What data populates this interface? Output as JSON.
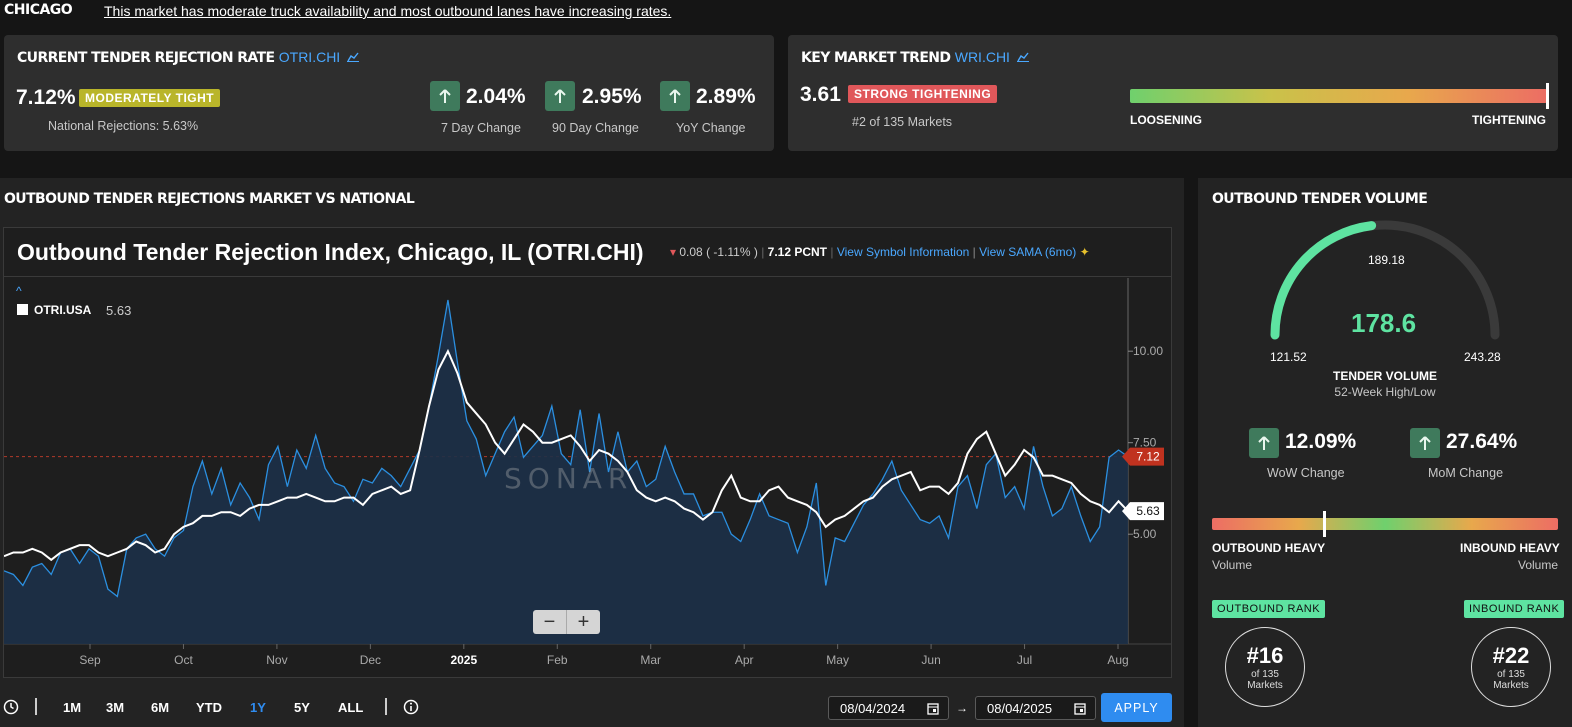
{
  "header": {
    "city": "CHICAGO",
    "summary": "This market has moderate truck availability and most outbound lanes have increasing rates."
  },
  "tender_rejection": {
    "title": "CURRENT TENDER REJECTION RATE",
    "symbol": "OTRI.CHI",
    "value": "7.12%",
    "badge": "MODERATELY TIGHT",
    "national": "National Rejections: 5.63%",
    "changes": [
      {
        "value": "2.04%",
        "label": "7 Day Change"
      },
      {
        "value": "2.95%",
        "label": "90 Day Change"
      },
      {
        "value": "2.89%",
        "label": "YoY Change"
      }
    ]
  },
  "market_trend": {
    "title": "KEY MARKET TREND",
    "symbol": "WRI.CHI",
    "value": "3.61",
    "badge": "STRONG TIGHTENING",
    "rank": "#2 of 135 Markets",
    "left_label": "LOOSENING",
    "right_label": "TIGHTENING",
    "position": 1.0
  },
  "chart_section": {
    "title": "OUTBOUND TENDER REJECTIONS MARKET VS NATIONAL",
    "chart_title": "Outbound Tender Rejection Index, Chicago, IL (OTRI.CHI)",
    "change": "0.08 ( -1.11% )",
    "current": "7.12 PCNT",
    "link1": "View Symbol Information",
    "link2": "View SAMA (6mo)",
    "caret": "^",
    "legend_name": "OTRI.USA",
    "legend_value": "5.63",
    "watermark": "SONAR",
    "zoom_out": "−",
    "zoom_in": "+"
  },
  "chart_data": {
    "type": "line",
    "x_labels": [
      "Sep",
      "Oct",
      "Nov",
      "Dec",
      "2025",
      "Feb",
      "Mar",
      "Apr",
      "May",
      "Jun",
      "Jul",
      "Aug"
    ],
    "y_ticks": [
      "10.00",
      "7.50",
      "5.00"
    ],
    "ylim": [
      2.0,
      12.0
    ],
    "series": [
      {
        "name": "OTRI.CHI",
        "color": "#2b8fe0",
        "last": "7.12",
        "values": [
          4.0,
          3.9,
          3.6,
          4.1,
          4.2,
          3.9,
          4.5,
          4.6,
          4.2,
          4.6,
          4.4,
          3.5,
          3.3,
          4.6,
          4.9,
          5.0,
          4.6,
          4.4,
          4.9,
          5.1,
          6.3,
          7.0,
          6.1,
          6.8,
          5.8,
          6.4,
          6.0,
          5.4,
          6.9,
          7.4,
          6.3,
          7.3,
          6.8,
          7.7,
          6.8,
          6.4,
          6.3,
          5.9,
          6.5,
          6.4,
          6.8,
          6.6,
          6.3,
          6.8,
          7.3,
          8.5,
          9.9,
          11.4,
          9.7,
          8.1,
          7.6,
          6.6,
          7.2,
          7.8,
          8.2,
          7.1,
          7.4,
          7.7,
          8.5,
          7.2,
          6.9,
          8.4,
          6.7,
          8.3,
          6.7,
          7.8,
          6.7,
          7.0,
          6.3,
          6.5,
          7.4,
          6.7,
          6.1,
          6.1,
          5.5,
          5.6,
          5.6,
          5.0,
          4.8,
          5.4,
          6.1,
          5.5,
          5.4,
          5.3,
          4.5,
          5.2,
          6.4,
          3.6,
          4.9,
          4.8,
          5.3,
          5.8,
          6.1,
          6.5,
          7.0,
          6.2,
          5.8,
          5.4,
          5.3,
          5.5,
          4.9,
          6.3,
          6.6,
          5.7,
          6.9,
          7.2,
          6.0,
          6.3,
          5.7,
          7.4,
          6.3,
          5.5,
          5.7,
          6.3,
          5.5,
          4.8,
          5.2,
          7.1,
          7.3,
          7.12
        ]
      },
      {
        "name": "OTRI.USA",
        "color": "#ffffff",
        "last": "5.63",
        "values": [
          4.4,
          4.5,
          4.5,
          4.6,
          4.5,
          4.3,
          4.5,
          4.6,
          4.7,
          4.7,
          4.5,
          4.4,
          4.5,
          4.6,
          4.8,
          4.7,
          4.5,
          4.6,
          5.0,
          5.2,
          5.3,
          5.5,
          5.5,
          5.6,
          5.6,
          5.5,
          5.7,
          5.8,
          5.8,
          5.9,
          6.0,
          6.0,
          6.1,
          6.0,
          5.9,
          5.9,
          6.0,
          6.0,
          5.8,
          6.1,
          6.2,
          6.3,
          6.1,
          6.2,
          7.3,
          8.5,
          9.5,
          10.0,
          9.4,
          8.6,
          8.3,
          8.0,
          7.5,
          7.2,
          7.6,
          8.0,
          7.8,
          7.5,
          7.5,
          7.6,
          7.7,
          7.4,
          7.0,
          7.3,
          7.2,
          7.0,
          6.7,
          6.2,
          6.0,
          5.9,
          6.0,
          5.9,
          5.7,
          5.6,
          5.4,
          5.6,
          6.2,
          6.6,
          6.0,
          5.9,
          5.9,
          6.2,
          6.3,
          6.0,
          5.9,
          5.8,
          5.6,
          5.2,
          5.4,
          5.5,
          5.7,
          5.9,
          6.0,
          6.3,
          6.5,
          6.6,
          6.7,
          6.2,
          6.3,
          6.3,
          6.1,
          6.4,
          7.2,
          7.6,
          7.8,
          7.2,
          6.6,
          6.9,
          7.3,
          7.1,
          6.6,
          6.6,
          6.5,
          6.4,
          6.1,
          5.9,
          5.8,
          5.6,
          5.9,
          5.63
        ]
      }
    ]
  },
  "range": {
    "buttons": [
      "1M",
      "3M",
      "6M",
      "YTD",
      "1Y",
      "5Y",
      "ALL"
    ],
    "active": "1Y",
    "start": "08/04/2024",
    "end": "08/04/2025",
    "apply": "APPLY"
  },
  "volume": {
    "title": "OUTBOUND TENDER VOLUME",
    "value": "178.6",
    "high_mark": "189.18",
    "low": "121.52",
    "high": "243.28",
    "label": "TENDER VOLUME",
    "sublabel": "52-Week High/Low",
    "wow": {
      "value": "12.09%",
      "label": "WoW Change"
    },
    "mom": {
      "value": "27.64%",
      "label": "MoM Change"
    },
    "left_label": "OUTBOUND HEAVY",
    "left_sub": "Volume",
    "right_label": "INBOUND HEAVY",
    "right_sub": "Volume",
    "outbound_rank_label": "OUTBOUND RANK",
    "outbound_rank": "#16",
    "inbound_rank_label": "INBOUND RANK",
    "inbound_rank": "#22",
    "rank_of": "of 135",
    "rank_markets": "Markets"
  },
  "colors": {
    "accent": "#4aa8ff",
    "positive": "#5ee3a1",
    "badge_yellow": "#b9b52a",
    "badge_red": "#e0575a",
    "marker_red": "#c0321f"
  }
}
